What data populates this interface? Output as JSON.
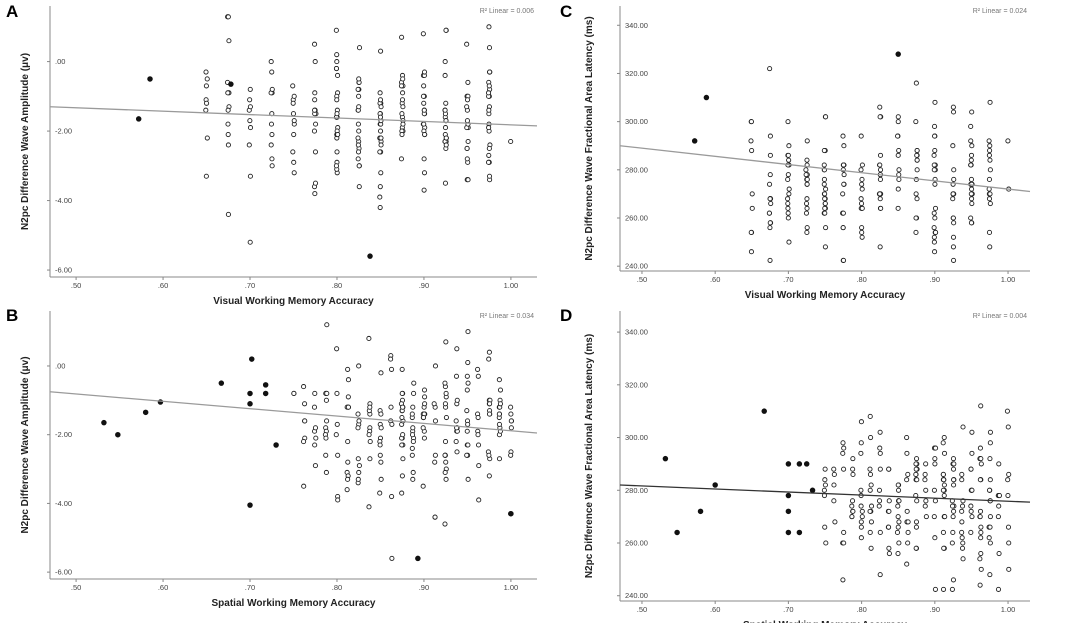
{
  "figure": {
    "description_panels": [
      "A",
      "B",
      "C",
      "D"
    ]
  },
  "chart_data": [
    {
      "type": "scatter",
      "panel": "A",
      "xlabel": "Visual Working Memory Accuracy",
      "ylabel": "N2pc Difference Wave Amplitude (μv)",
      "xlim": [
        0.47,
        1.03
      ],
      "ylim": [
        -6.2,
        1.6
      ],
      "xticks": [
        0.5,
        0.6,
        0.7,
        0.8,
        0.9,
        1.0
      ],
      "xtick_labels": [
        ".50",
        ".60",
        ".70",
        ".80",
        ".90",
        "1.00"
      ],
      "yticks": [
        0,
        -2,
        -4,
        -6
      ],
      "ytick_labels": [
        ".00",
        "-2.00",
        "-4.00",
        "-6.00"
      ],
      "r2_label": "R² Linear = 0.006",
      "fit_line": {
        "x": [
          0.47,
          1.03
        ],
        "y": [
          -1.3,
          -1.85
        ],
        "color": "#9a9a9a"
      },
      "filled_points": [
        [
          0.572,
          -1.65
        ],
        [
          0.585,
          -0.5
        ],
        [
          0.678,
          -0.65
        ],
        [
          0.838,
          -5.6
        ]
      ],
      "open_seed": 11,
      "open_count": 240,
      "open_xrange": [
        0.64,
        0.99
      ],
      "open_ycenter": -1.55,
      "open_yspread": 1.15,
      "x_grid": 0.025,
      "y_grid": 0.1,
      "line_color": "#9a9a9a"
    },
    {
      "type": "scatter",
      "panel": "B",
      "xlabel": "Spatial Working Memory Accuracy",
      "ylabel": "N2pc Difference Wave Amplitude (μv)",
      "xlim": [
        0.47,
        1.03
      ],
      "ylim": [
        -6.2,
        1.6
      ],
      "xticks": [
        0.5,
        0.6,
        0.7,
        0.8,
        0.9,
        1.0
      ],
      "xtick_labels": [
        ".50",
        ".60",
        ".70",
        ".80",
        ".90",
        "1.00"
      ],
      "yticks": [
        0,
        -2,
        -4,
        -6
      ],
      "ytick_labels": [
        ".00",
        "-2.00",
        "-4.00",
        "-6.00"
      ],
      "r2_label": "R² Linear = 0.034",
      "fit_line": {
        "x": [
          0.47,
          1.03
        ],
        "y": [
          -0.75,
          -1.95
        ],
        "color": "#9a9a9a"
      },
      "filled_points": [
        [
          0.532,
          -1.65
        ],
        [
          0.548,
          -2.0
        ],
        [
          0.58,
          -1.35
        ],
        [
          0.597,
          -1.05
        ],
        [
          0.667,
          -0.5
        ],
        [
          0.7,
          -0.8
        ],
        [
          0.7,
          -1.1
        ],
        [
          0.702,
          0.2
        ],
        [
          0.718,
          -0.55
        ],
        [
          0.718,
          -0.8
        ],
        [
          0.73,
          -2.3
        ],
        [
          0.7,
          -4.05
        ],
        [
          0.893,
          -5.6
        ],
        [
          1.0,
          -4.3
        ]
      ],
      "open_seed": 23,
      "open_count": 230,
      "open_xrange": [
        0.75,
        1.0
      ],
      "open_ycenter": -1.75,
      "open_yspread": 1.05,
      "x_grid": 0.0125,
      "y_grid": 0.1,
      "line_color": "#9a9a9a"
    },
    {
      "type": "scatter",
      "panel": "C",
      "xlabel": "Visual Working Memory Accuracy",
      "ylabel": "N2pc Difference Wave Fractional Area Latency (ms)",
      "xlim": [
        0.47,
        1.03
      ],
      "ylim": [
        238,
        348
      ],
      "xticks": [
        0.5,
        0.6,
        0.7,
        0.8,
        0.9,
        1.0
      ],
      "xtick_labels": [
        ".50",
        ".60",
        ".70",
        ".80",
        ".90",
        "1.00"
      ],
      "yticks": [
        240,
        260,
        280,
        300,
        320,
        340
      ],
      "ytick_labels": [
        "240.00",
        "260.00",
        "280.00",
        "300.00",
        "320.00",
        "340.00"
      ],
      "r2_label": "R² Linear = 0.024",
      "fit_line": {
        "x": [
          0.47,
          1.03
        ],
        "y": [
          290,
          271
        ],
        "color": "#9a9a9a"
      },
      "filled_points": [
        [
          0.572,
          292
        ],
        [
          0.588,
          310
        ],
        [
          0.85,
          328
        ]
      ],
      "open_seed": 37,
      "open_count": 230,
      "open_xrange": [
        0.64,
        0.99
      ],
      "open_ycenter": 274,
      "open_yspread": 16,
      "x_grid": 0.025,
      "y_grid": 2,
      "line_color": "#9a9a9a"
    },
    {
      "type": "scatter",
      "panel": "D",
      "xlabel": "Spatial Working Memory Accuracy",
      "ylabel": "N2pc Difference Wave Fractional Area Latency (ms)",
      "xlim": [
        0.47,
        1.03
      ],
      "ylim": [
        238,
        348
      ],
      "xticks": [
        0.5,
        0.6,
        0.7,
        0.8,
        0.9,
        1.0
      ],
      "xtick_labels": [
        ".50",
        ".60",
        ".70",
        ".80",
        ".90",
        "1.00"
      ],
      "yticks": [
        240,
        260,
        280,
        300,
        320,
        340
      ],
      "ytick_labels": [
        "240.00",
        "260.00",
        "280.00",
        "300.00",
        "320.00",
        "340.00"
      ],
      "r2_label": "R² Linear = 0.004",
      "fit_line": {
        "x": [
          0.47,
          1.03
        ],
        "y": [
          282,
          275.5
        ],
        "color": "#333333"
      },
      "filled_points": [
        [
          0.532,
          292
        ],
        [
          0.548,
          264
        ],
        [
          0.58,
          272
        ],
        [
          0.6,
          282
        ],
        [
          0.667,
          310
        ],
        [
          0.7,
          290
        ],
        [
          0.7,
          278
        ],
        [
          0.7,
          272
        ],
        [
          0.7,
          264
        ],
        [
          0.715,
          290
        ],
        [
          0.725,
          290
        ],
        [
          0.715,
          264
        ],
        [
          0.733,
          280
        ]
      ],
      "open_seed": 53,
      "open_count": 230,
      "open_xrange": [
        0.74,
        1.0
      ],
      "open_ycenter": 276,
      "open_yspread": 15,
      "x_grid": 0.0125,
      "y_grid": 2,
      "line_color": "#333333"
    }
  ]
}
